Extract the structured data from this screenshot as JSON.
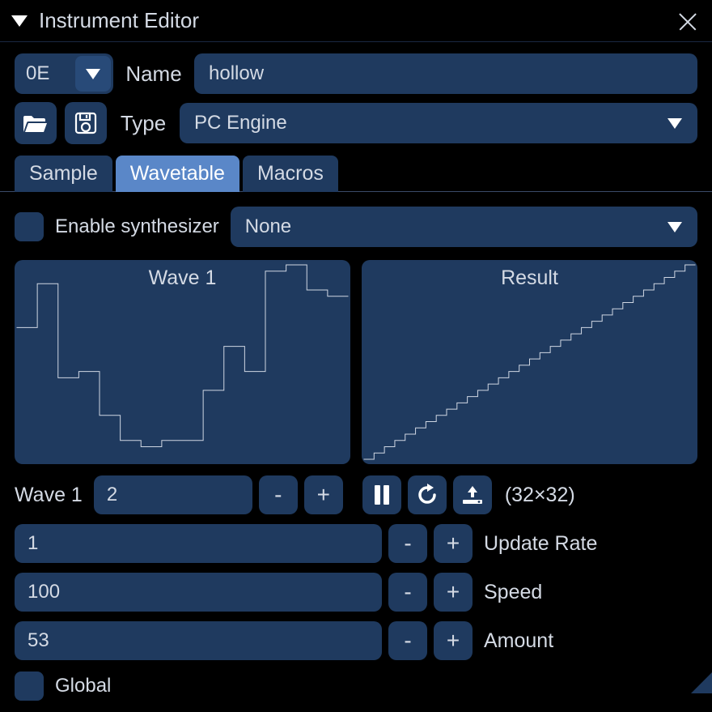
{
  "window": {
    "title": "Instrument Editor"
  },
  "instrument": {
    "id": "0E",
    "name_label": "Name",
    "name_value": "hollow",
    "type_label": "Type",
    "type_value": "PC Engine"
  },
  "tabs": {
    "sample": "Sample",
    "wavetable": "Wavetable",
    "macros": "Macros",
    "active": "wavetable"
  },
  "synth": {
    "enable_label": "Enable synthesizer",
    "enabled": false,
    "mode": "None"
  },
  "waves": {
    "wave1_title": "Wave 1",
    "result_title": "Result",
    "wave1_data": {
      "samples": [
        21,
        21,
        28,
        28,
        13,
        13,
        14,
        14,
        7,
        7,
        3,
        3,
        2,
        2,
        3,
        3,
        3,
        3,
        11,
        11,
        18,
        18,
        14,
        14,
        30,
        30,
        31,
        31,
        27,
        27,
        26,
        26
      ],
      "max": 31,
      "stroke": "#cfd6e2",
      "stroke_width": 1
    },
    "result_data": {
      "samples": [
        0,
        1,
        2,
        3,
        4,
        5,
        6,
        7,
        8,
        9,
        10,
        11,
        12,
        13,
        14,
        15,
        16,
        17,
        18,
        19,
        20,
        21,
        22,
        23,
        24,
        25,
        26,
        27,
        28,
        29,
        30,
        31
      ],
      "max": 31,
      "stroke": "#cfd6e2",
      "stroke_width": 1
    }
  },
  "wave_controls": {
    "wave1_label": "Wave 1",
    "wave1_value": "2",
    "minus": "-",
    "plus": "+",
    "dimensions": "(32×32)"
  },
  "params": {
    "update_rate": {
      "value": "1",
      "label": "Update Rate"
    },
    "speed": {
      "value": "100",
      "label": "Speed"
    },
    "amount": {
      "value": "53",
      "label": "Amount"
    }
  },
  "global": {
    "label": "Global",
    "checked": false
  },
  "style": {
    "panel_bg": "#1f3a5f"
  }
}
